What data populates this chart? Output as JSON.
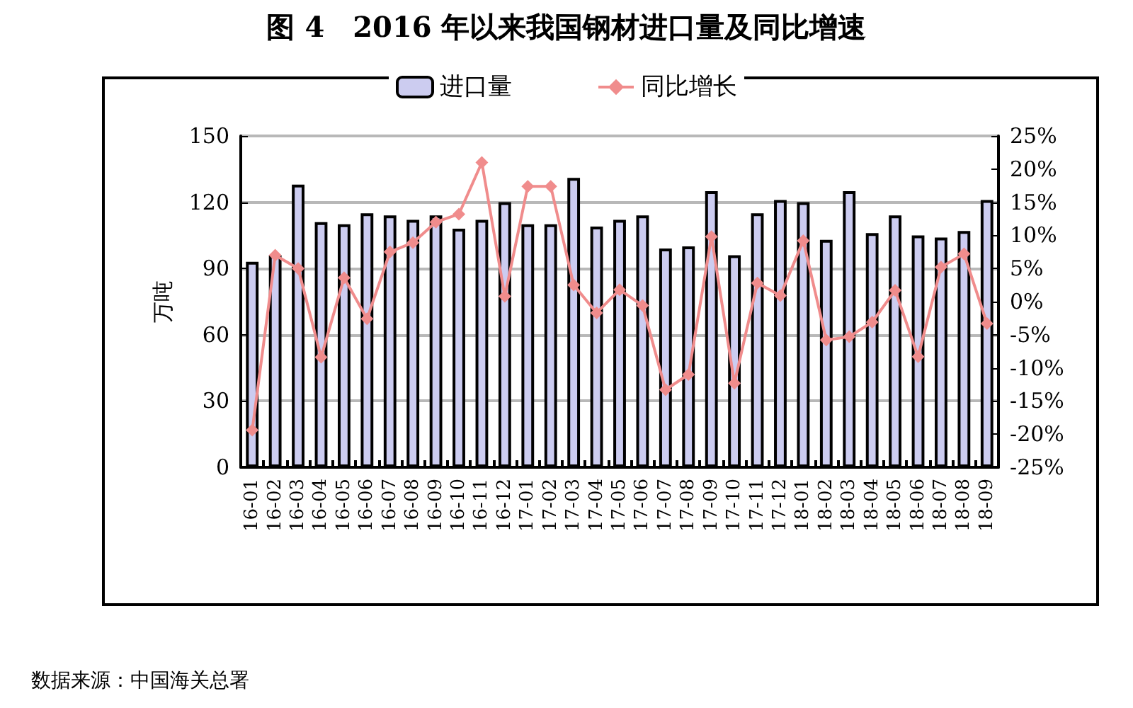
{
  "chart_data": {
    "type": "bar",
    "title": "图 4　2016 年以来我国钢材进口量及同比增速",
    "ylabel": "万吨",
    "annotations": [
      "数据来源：中国海关总署"
    ],
    "categories": [
      "16-01",
      "16-02",
      "16-03",
      "16-04",
      "16-05",
      "16-06",
      "16-07",
      "16-08",
      "16-09",
      "16-10",
      "16-11",
      "16-12",
      "17-01",
      "17-02",
      "17-03",
      "17-04",
      "17-05",
      "17-06",
      "17-07",
      "17-08",
      "17-09",
      "17-10",
      "17-11",
      "17-12",
      "18-01",
      "18-02",
      "18-03",
      "18-04",
      "18-05",
      "18-06",
      "18-07",
      "18-08",
      "18-09"
    ],
    "series": [
      {
        "name": "进口量",
        "color": "#ccccf0",
        "values": [
          93,
          96,
          128,
          111,
          110,
          115,
          114,
          112,
          114,
          108,
          112,
          120,
          110,
          110,
          131,
          109,
          112,
          114,
          99,
          100,
          125,
          96,
          115,
          121,
          120,
          103,
          125,
          106,
          114,
          105,
          104,
          107,
          121
        ]
      },
      {
        "name": "同比增长",
        "type": "line",
        "axis": "y2",
        "color": "#f08c8c",
        "marker": "diamond",
        "values": [
          -19.4,
          7.0,
          5.0,
          -8.4,
          3.6,
          -2.6,
          7.5,
          8.9,
          12.0,
          13.2,
          21.0,
          0.8,
          17.4,
          17.4,
          2.5,
          -1.7,
          1.8,
          -0.6,
          -13.3,
          -11.0,
          9.8,
          -12.3,
          2.8,
          0.9,
          9.2,
          -5.8,
          -5.3,
          -3.1,
          1.7,
          -8.3,
          5.2,
          7.2,
          -3.3
        ]
      }
    ],
    "ylim": [
      0,
      150
    ],
    "yticks": [
      0,
      30,
      60,
      90,
      120,
      150
    ],
    "y2lim": [
      -25,
      25
    ],
    "y2ticks": [
      {
        "value": -25,
        "label": "-25%"
      },
      {
        "value": -20,
        "label": "-20%"
      },
      {
        "value": -15,
        "label": "-15%"
      },
      {
        "value": -10,
        "label": "-10%"
      },
      {
        "value": -5,
        "label": "-5%"
      },
      {
        "value": 0,
        "label": "0%"
      },
      {
        "value": 5,
        "label": "5%"
      },
      {
        "value": 10,
        "label": "10%"
      },
      {
        "value": 15,
        "label": "15%"
      },
      {
        "value": 20,
        "label": "20%"
      },
      {
        "value": 25,
        "label": "25%"
      }
    ],
    "grid": "y",
    "legend": "top"
  }
}
